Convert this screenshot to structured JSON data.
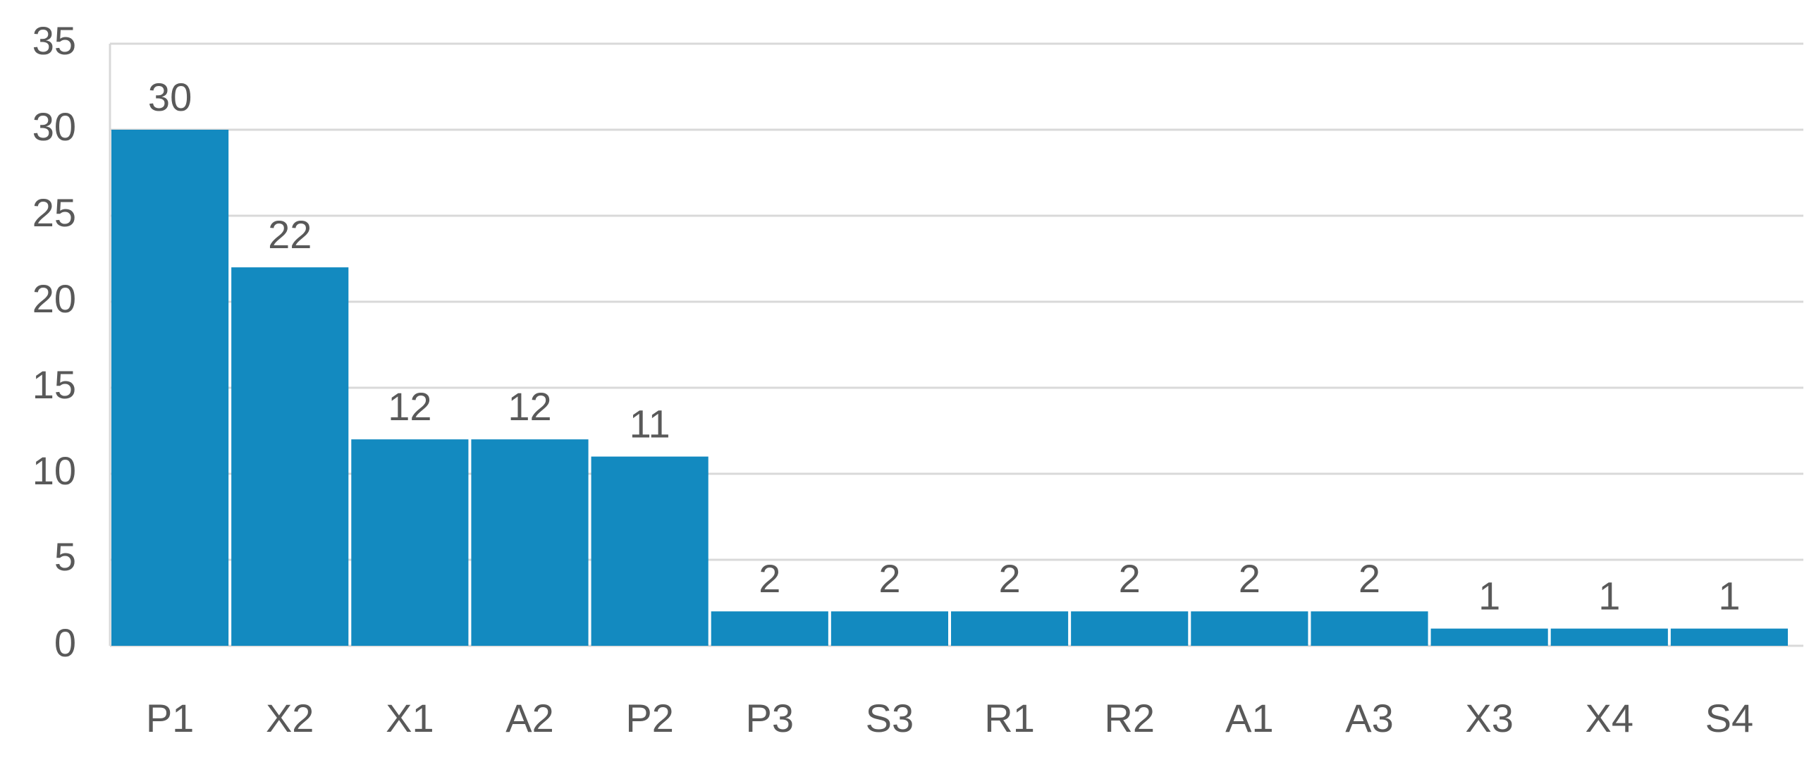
{
  "chart_data": {
    "type": "bar",
    "categories": [
      "P1",
      "X2",
      "X1",
      "A2",
      "P2",
      "P3",
      "S3",
      "R1",
      "R2",
      "A1",
      "A3",
      "X3",
      "X4",
      "S4"
    ],
    "values": [
      30,
      22,
      12,
      12,
      11,
      2,
      2,
      2,
      2,
      2,
      2,
      1,
      1,
      1
    ],
    "color": "#138ac0",
    "ylim": [
      0,
      35
    ],
    "yticks": [
      0,
      5,
      10,
      15,
      20,
      25,
      30,
      35
    ],
    "grid": true
  }
}
